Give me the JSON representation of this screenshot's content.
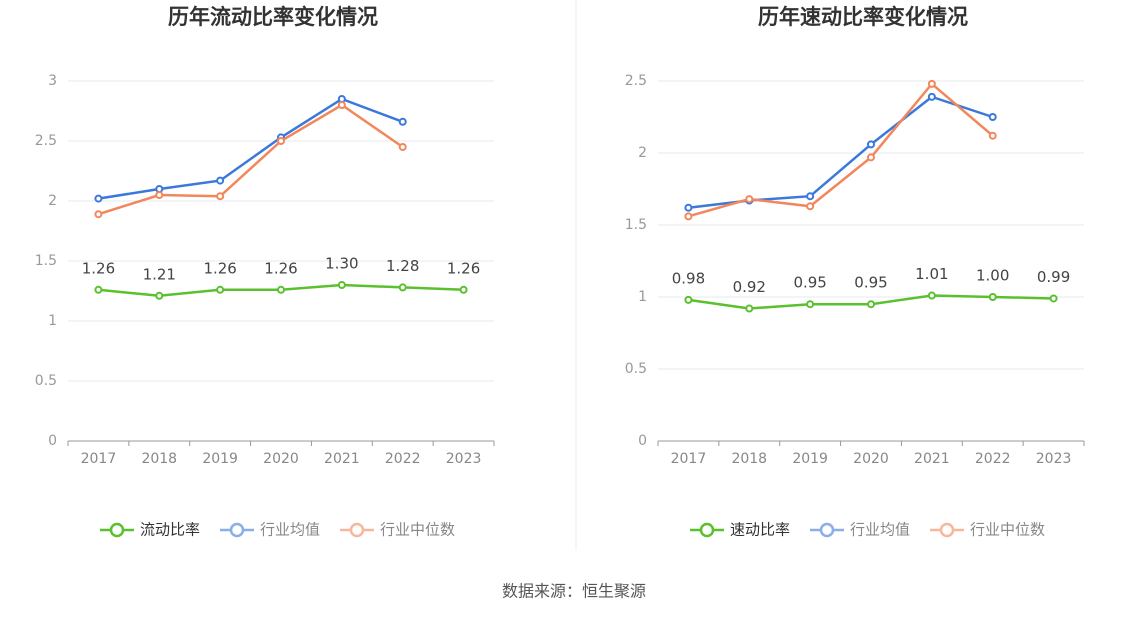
{
  "chart_data": [
    {
      "type": "line",
      "title": "历年流动比率变化情况",
      "categories": [
        "2017",
        "2018",
        "2019",
        "2020",
        "2021",
        "2022",
        "2023"
      ],
      "series": [
        {
          "name": "流动比率",
          "color": "#5ac02e",
          "values": [
            1.26,
            1.21,
            1.26,
            1.26,
            1.3,
            1.28,
            1.26
          ],
          "value_labels": [
            "1.26",
            "1.21",
            "1.26",
            "1.26",
            "1.30",
            "1.28",
            "1.26"
          ]
        },
        {
          "name": "行业均值",
          "color": "#3b78dc",
          "values": [
            2.02,
            2.1,
            2.17,
            2.53,
            2.85,
            2.66,
            null
          ]
        },
        {
          "name": "行业中位数",
          "color": "#f2875c",
          "values": [
            1.89,
            2.05,
            2.04,
            2.5,
            2.8,
            2.45,
            null
          ]
        }
      ],
      "ylim": [
        0,
        3
      ],
      "yticks": [
        0,
        0.5,
        1,
        1.5,
        2,
        2.5,
        3
      ],
      "grid": true
    },
    {
      "type": "line",
      "title": "历年速动比率变化情况",
      "categories": [
        "2017",
        "2018",
        "2019",
        "2020",
        "2021",
        "2022",
        "2023"
      ],
      "series": [
        {
          "name": "速动比率",
          "color": "#5ac02e",
          "values": [
            0.98,
            0.92,
            0.95,
            0.95,
            1.01,
            1.0,
            0.99
          ],
          "value_labels": [
            "0.98",
            "0.92",
            "0.95",
            "0.95",
            "1.01",
            "1.00",
            "0.99"
          ]
        },
        {
          "name": "行业均值",
          "color": "#3b78dc",
          "values": [
            1.62,
            1.67,
            1.7,
            2.06,
            2.39,
            2.25,
            null
          ]
        },
        {
          "name": "行业中位数",
          "color": "#f2875c",
          "values": [
            1.56,
            1.68,
            1.63,
            1.97,
            2.48,
            2.12,
            null
          ]
        }
      ],
      "ylim": [
        0,
        2.5
      ],
      "yticks": [
        0,
        0.5,
        1,
        1.5,
        2,
        2.5
      ],
      "grid": true
    }
  ],
  "source": "数据来源：恒生聚源"
}
